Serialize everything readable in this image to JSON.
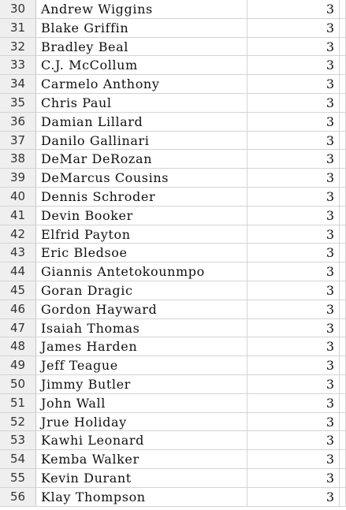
{
  "sheet": {
    "rows": [
      {
        "num": "30",
        "name": "Andrew Wiggins",
        "value": "3"
      },
      {
        "num": "31",
        "name": "Blake Griffin",
        "value": "3"
      },
      {
        "num": "32",
        "name": "Bradley Beal",
        "value": "3"
      },
      {
        "num": "33",
        "name": "C.J. McCollum",
        "value": "3"
      },
      {
        "num": "34",
        "name": "Carmelo Anthony",
        "value": "3"
      },
      {
        "num": "35",
        "name": "Chris Paul",
        "value": "3"
      },
      {
        "num": "36",
        "name": "Damian Lillard",
        "value": "3"
      },
      {
        "num": "37",
        "name": "Danilo Gallinari",
        "value": "3"
      },
      {
        "num": "38",
        "name": "DeMar DeRozan",
        "value": "3"
      },
      {
        "num": "39",
        "name": "DeMarcus Cousins",
        "value": "3"
      },
      {
        "num": "40",
        "name": "Dennis Schroder",
        "value": "3"
      },
      {
        "num": "41",
        "name": "Devin Booker",
        "value": "3"
      },
      {
        "num": "42",
        "name": "Elfrid Payton",
        "value": "3"
      },
      {
        "num": "43",
        "name": "Eric Bledsoe",
        "value": "3"
      },
      {
        "num": "44",
        "name": "Giannis Antetokounmpo",
        "value": "3"
      },
      {
        "num": "45",
        "name": "Goran Dragic",
        "value": "3"
      },
      {
        "num": "46",
        "name": "Gordon Hayward",
        "value": "3"
      },
      {
        "num": "47",
        "name": "Isaiah Thomas",
        "value": "3"
      },
      {
        "num": "48",
        "name": "James Harden",
        "value": "3"
      },
      {
        "num": "49",
        "name": "Jeff Teague",
        "value": "3"
      },
      {
        "num": "50",
        "name": "Jimmy Butler",
        "value": "3"
      },
      {
        "num": "51",
        "name": "John Wall",
        "value": "3"
      },
      {
        "num": "52",
        "name": "Jrue Holiday",
        "value": "3"
      },
      {
        "num": "53",
        "name": "Kawhi Leonard",
        "value": "3"
      },
      {
        "num": "54",
        "name": "Kemba Walker",
        "value": "3"
      },
      {
        "num": "55",
        "name": "Kevin Durant",
        "value": "3"
      },
      {
        "num": "56",
        "name": "Klay Thompson",
        "value": "3"
      }
    ]
  }
}
